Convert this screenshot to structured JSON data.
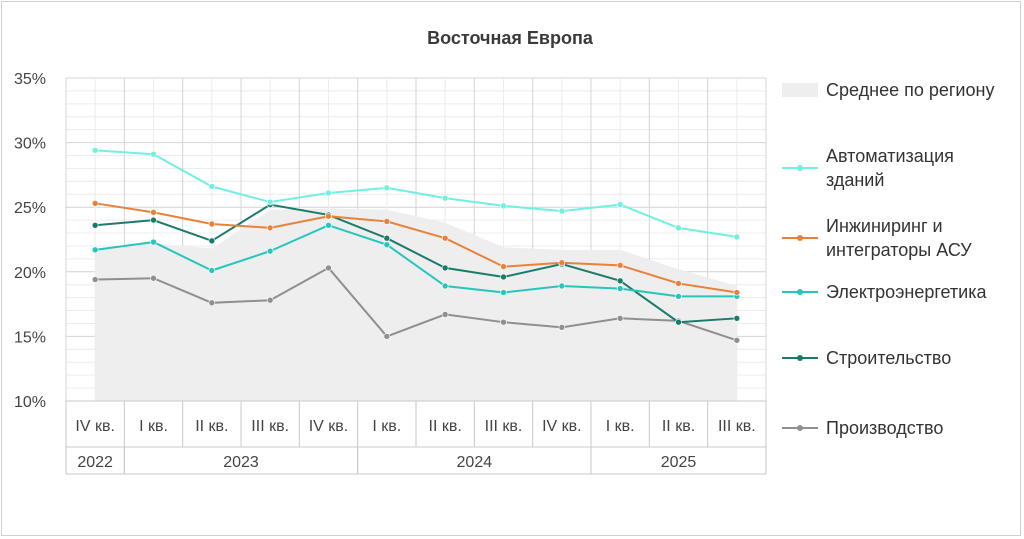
{
  "chart_data": {
    "type": "line",
    "title": "Восточная Европа",
    "ylim": [
      10,
      35
    ],
    "y_ticks": [
      "10%",
      "15%",
      "20%",
      "25%",
      "30%",
      "35%"
    ],
    "y_tick_values": [
      10,
      15,
      20,
      25,
      30,
      35
    ],
    "categories": [
      "IV кв.",
      "I кв.",
      "II кв.",
      "III кв.",
      "IV кв.",
      "I кв.",
      "II кв.",
      "III кв.",
      "IV кв.",
      "I кв.",
      "II кв.",
      "III кв."
    ],
    "year_groups": [
      {
        "label": "2022",
        "start": 0,
        "end": 0
      },
      {
        "label": "2023",
        "start": 1,
        "end": 4
      },
      {
        "label": "2024",
        "start": 5,
        "end": 8
      },
      {
        "label": "2025",
        "start": 9,
        "end": 11
      }
    ],
    "area": {
      "name": "Среднее по региону",
      "color": "#eeeeee",
      "values": [
        21.8,
        22.2,
        21.8,
        24.8,
        24.9,
        24.8,
        23.8,
        21.9,
        21.7,
        21.7,
        20.2,
        18.9
      ]
    },
    "series": [
      {
        "name": "Автоматизация зданий",
        "color": "#6ff0e0",
        "values": [
          29.4,
          29.1,
          26.6,
          25.4,
          26.1,
          26.5,
          25.7,
          25.1,
          24.7,
          25.2,
          23.4,
          22.7
        ]
      },
      {
        "name": "Инжиниринг и интеграторы АСУ",
        "color": "#e8823a",
        "values": [
          25.3,
          24.6,
          23.7,
          23.4,
          24.3,
          23.9,
          22.6,
          20.4,
          20.7,
          20.5,
          19.1,
          18.4
        ]
      },
      {
        "name": "Электроэнергетика",
        "color": "#25c6bc",
        "values": [
          21.7,
          22.3,
          20.1,
          21.6,
          23.6,
          22.1,
          18.9,
          18.4,
          18.9,
          18.7,
          18.1,
          18.1
        ]
      },
      {
        "name": "Строительство",
        "color": "#1b7b6a",
        "values": [
          23.6,
          24.0,
          22.4,
          25.2,
          24.4,
          22.6,
          20.3,
          19.6,
          20.6,
          19.3,
          16.1,
          16.4
        ]
      },
      {
        "name": "Производство",
        "color": "#8f8f8f",
        "values": [
          19.4,
          19.5,
          17.6,
          17.8,
          20.3,
          15.0,
          16.7,
          16.1,
          15.7,
          16.4,
          16.2,
          14.7
        ]
      }
    ],
    "legend": {
      "placement": "right",
      "entries": [
        {
          "lines": [
            "Среднее по региону"
          ]
        },
        {
          "lines": [
            "Автоматизация",
            "зданий"
          ]
        },
        {
          "lines": [
            "Инжиниринг и",
            "интеграторы АСУ"
          ]
        },
        {
          "lines": [
            "Электроэнергетика"
          ]
        },
        {
          "lines": [
            "Строительство"
          ]
        },
        {
          "lines": [
            "Производство"
          ]
        }
      ]
    },
    "grid": true
  }
}
